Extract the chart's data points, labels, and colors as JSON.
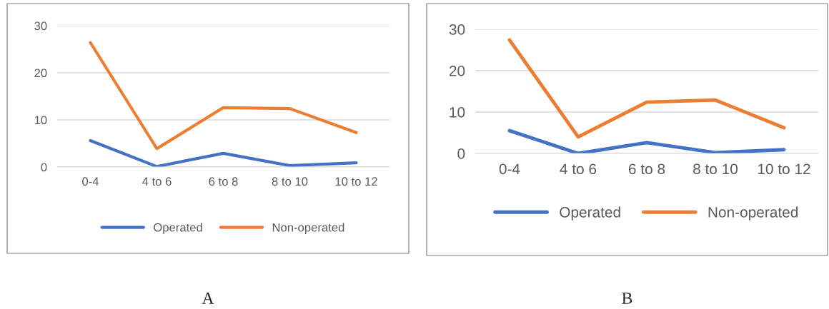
{
  "chart_data": [
    {
      "type": "line",
      "categories": [
        "0-4",
        "4 to 6",
        "6 to 8",
        "8 to 10",
        "10 to 12"
      ],
      "series": [
        {
          "name": "Operated",
          "color": "#4472c4",
          "values": [
            5.6,
            0.1,
            2.9,
            0.3,
            0.9
          ]
        },
        {
          "name": "Non-operated",
          "color": "#ed7d31",
          "values": [
            26.4,
            3.9,
            12.6,
            12.4,
            7.3
          ]
        }
      ],
      "ylim": [
        0,
        30
      ],
      "yticks": [
        0,
        10,
        20,
        30
      ],
      "grid": "y",
      "legend": "bottom",
      "marker": "none",
      "line_style": "solid",
      "annotations": [
        "A"
      ]
    },
    {
      "type": "line",
      "categories": [
        "0-4",
        "4 to 6",
        "6 to 8",
        "8 to 10",
        "10 to 12"
      ],
      "series": [
        {
          "name": "Operated",
          "color": "#4472c4",
          "values": [
            5.5,
            0,
            2.6,
            0.2,
            0.9
          ]
        },
        {
          "name": "Non-operated",
          "color": "#ed7d31",
          "values": [
            27.4,
            4.0,
            12.4,
            12.9,
            6.2
          ]
        }
      ],
      "ylim": [
        0,
        30
      ],
      "yticks": [
        0,
        10,
        20,
        30
      ],
      "grid": "y",
      "legend": "bottom",
      "marker": "none",
      "line_style": "solid",
      "annotations": [
        "B"
      ]
    }
  ]
}
